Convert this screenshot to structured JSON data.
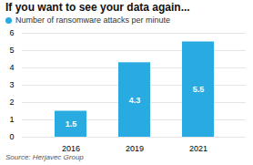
{
  "chart_data": {
    "type": "bar",
    "title": "If you want to see your data again...",
    "categories": [
      "2016",
      "2019",
      "2021"
    ],
    "series": [
      {
        "name": "Number of ransomware attacks per minute",
        "color": "#29ABE2",
        "values": [
          1.5,
          4.3,
          5.5
        ]
      }
    ],
    "ylim": [
      0,
      6
    ],
    "yticks": [
      0,
      1,
      2,
      3,
      4,
      5,
      6
    ],
    "grid": true,
    "legend": "upper left",
    "data_labels": true,
    "source": "Source: Herjavec Group"
  }
}
